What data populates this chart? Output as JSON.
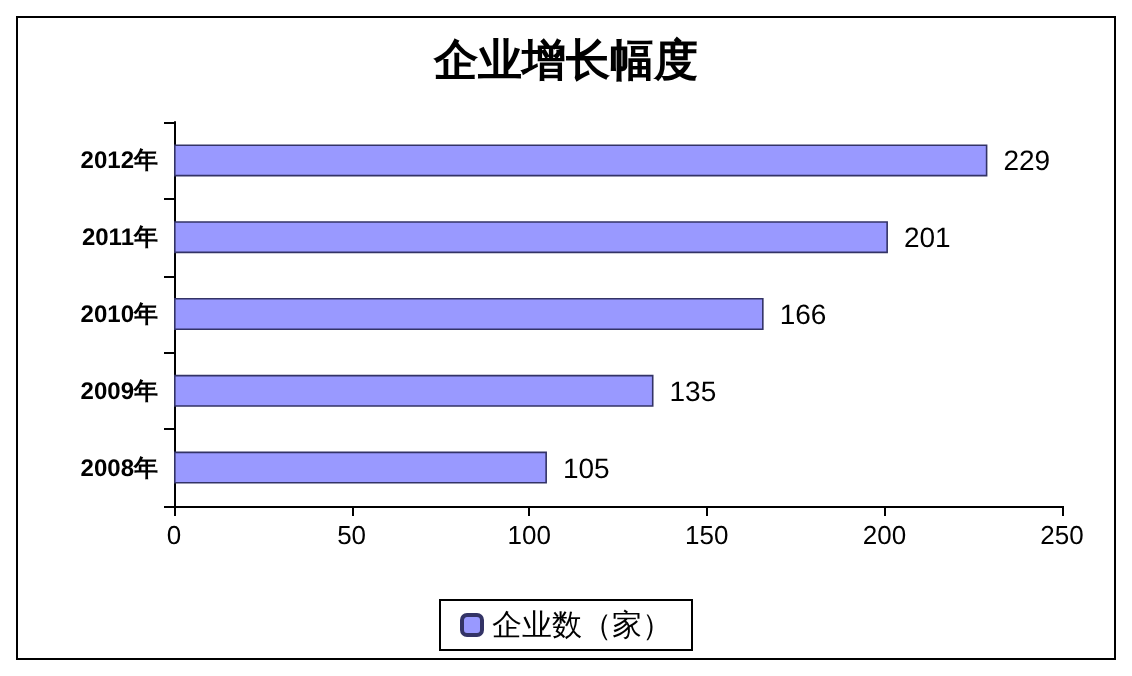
{
  "chart_data": {
    "type": "bar",
    "orientation": "horizontal",
    "title": "企业增长幅度",
    "categories": [
      "2012年",
      "2011年",
      "2010年",
      "2009年",
      "2008年"
    ],
    "series": [
      {
        "name": "企业数（家）",
        "color": "#9999ff",
        "values": [
          229,
          201,
          166,
          135,
          105
        ]
      }
    ],
    "xlim": [
      0,
      250
    ],
    "xticks": [
      0,
      50,
      100,
      150,
      200,
      250
    ],
    "data_labels": true,
    "legend": "bottom",
    "grid": false
  }
}
